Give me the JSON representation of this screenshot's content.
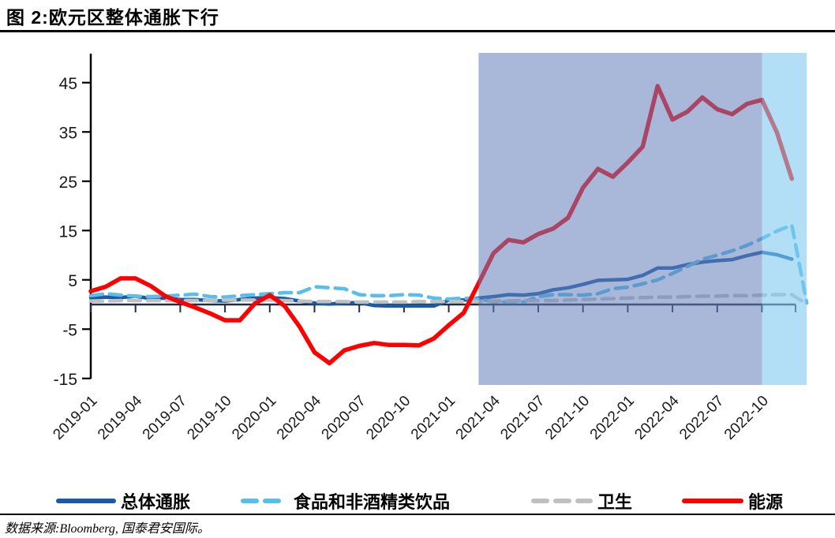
{
  "page": {
    "title": "图 2:欧元区整体通胀下行",
    "source": "数据来源:Bloomberg, 国泰君安国际。"
  },
  "chart_data": {
    "type": "line",
    "title": "欧元区整体通胀下行",
    "xlabel": "",
    "ylabel": "",
    "ylim": [
      -15,
      50
    ],
    "grid": false,
    "legend_position": "bottom",
    "y_ticks": [
      45,
      35,
      25,
      15,
      5,
      -5,
      -15
    ],
    "x": [
      "2019-01",
      "2019-02",
      "2019-03",
      "2019-04",
      "2019-05",
      "2019-06",
      "2019-07",
      "2019-08",
      "2019-09",
      "2019-10",
      "2019-11",
      "2019-12",
      "2020-01",
      "2020-02",
      "2020-03",
      "2020-04",
      "2020-05",
      "2020-06",
      "2020-07",
      "2020-08",
      "2020-09",
      "2020-10",
      "2020-11",
      "2020-12",
      "2021-01",
      "2021-02",
      "2021-03",
      "2021-04",
      "2021-05",
      "2021-06",
      "2021-07",
      "2021-08",
      "2021-09",
      "2021-10",
      "2021-11",
      "2021-12",
      "2022-01",
      "2022-02",
      "2022-03",
      "2022-04",
      "2022-05",
      "2022-06",
      "2022-07",
      "2022-08",
      "2022-09",
      "2022-10",
      "2022-11",
      "2022-12",
      "2023-01"
    ],
    "x_tick_labels": [
      "2019-01",
      "2019-04",
      "2019-07",
      "2019-10",
      "2020-01",
      "2020-04",
      "2020-07",
      "2020-10",
      "2021-01",
      "2021-04",
      "2021-07",
      "2021-10",
      "2022-01",
      "2022-04",
      "2022-07",
      "2022-10"
    ],
    "series": [
      {
        "name": "总体通胀",
        "color": "#1B5AA5",
        "style": "solid",
        "values": [
          1.4,
          1.5,
          1.4,
          1.7,
          1.2,
          1.3,
          1.0,
          1.0,
          0.8,
          0.7,
          1.0,
          1.3,
          1.4,
          1.2,
          0.7,
          0.3,
          0.1,
          0.3,
          0.4,
          -0.2,
          -0.3,
          -0.3,
          -0.3,
          -0.3,
          0.9,
          0.9,
          1.3,
          1.6,
          2.0,
          1.9,
          2.2,
          3.0,
          3.4,
          4.1,
          4.9,
          5.0,
          5.1,
          5.9,
          7.4,
          7.4,
          8.1,
          8.6,
          8.9,
          9.1,
          9.9,
          10.6,
          10.1,
          9.2,
          null
        ]
      },
      {
        "name": "食品和非酒精类饮品",
        "color": "#58BEEC",
        "style": "dashed",
        "values": [
          1.8,
          2.2,
          1.9,
          1.7,
          1.6,
          1.7,
          1.9,
          2.1,
          1.6,
          1.5,
          1.8,
          2.0,
          2.2,
          2.4,
          2.4,
          3.6,
          3.4,
          3.2,
          2.0,
          1.8,
          1.8,
          2.0,
          1.9,
          1.3,
          1.1,
          1.3,
          1.1,
          0.6,
          0.5,
          0.5,
          1.6,
          2.0,
          2.0,
          1.9,
          2.2,
          3.2,
          3.5,
          4.2,
          5.0,
          6.3,
          7.7,
          9.2,
          10.0,
          10.9,
          12.0,
          13.4,
          14.9,
          16.1,
          0.3
        ]
      },
      {
        "name": "卫生",
        "color": "#C0C0C0",
        "style": "dashed",
        "values": [
          0.7,
          0.7,
          0.8,
          0.8,
          0.8,
          0.8,
          0.8,
          0.8,
          0.8,
          0.9,
          0.9,
          0.9,
          0.9,
          0.8,
          0.7,
          0.6,
          0.6,
          0.6,
          0.5,
          0.5,
          0.5,
          0.5,
          0.6,
          0.6,
          0.6,
          0.6,
          0.6,
          0.7,
          0.7,
          0.8,
          0.8,
          0.8,
          0.9,
          1.0,
          1.1,
          1.2,
          1.3,
          1.4,
          1.5,
          1.5,
          1.6,
          1.7,
          1.7,
          1.8,
          1.8,
          1.9,
          2.0,
          2.0,
          0.1
        ]
      },
      {
        "name": "能源",
        "color": "#FE0000",
        "style": "solid",
        "values": [
          2.7,
          3.6,
          5.3,
          5.3,
          3.8,
          1.7,
          0.5,
          -0.6,
          -1.8,
          -3.2,
          -3.2,
          0.2,
          1.9,
          -0.3,
          -4.5,
          -9.7,
          -11.9,
          -9.3,
          -8.4,
          -7.8,
          -8.2,
          -8.2,
          -8.3,
          -6.9,
          -4.2,
          -1.7,
          4.3,
          10.4,
          13.1,
          12.6,
          14.3,
          15.4,
          17.6,
          23.7,
          27.5,
          25.9,
          28.8,
          32.0,
          44.3,
          37.5,
          39.1,
          42.0,
          39.6,
          38.6,
          40.7,
          41.5,
          34.9,
          25.5,
          null
        ]
      }
    ],
    "highlight_bands": [
      {
        "from": "2021-03",
        "to": "2022-10",
        "color": "#627EB8",
        "opacity": 0.55
      },
      {
        "from": "2022-10",
        "to": "2023-01",
        "color": "#7FC9EE",
        "opacity": 0.6
      }
    ]
  }
}
